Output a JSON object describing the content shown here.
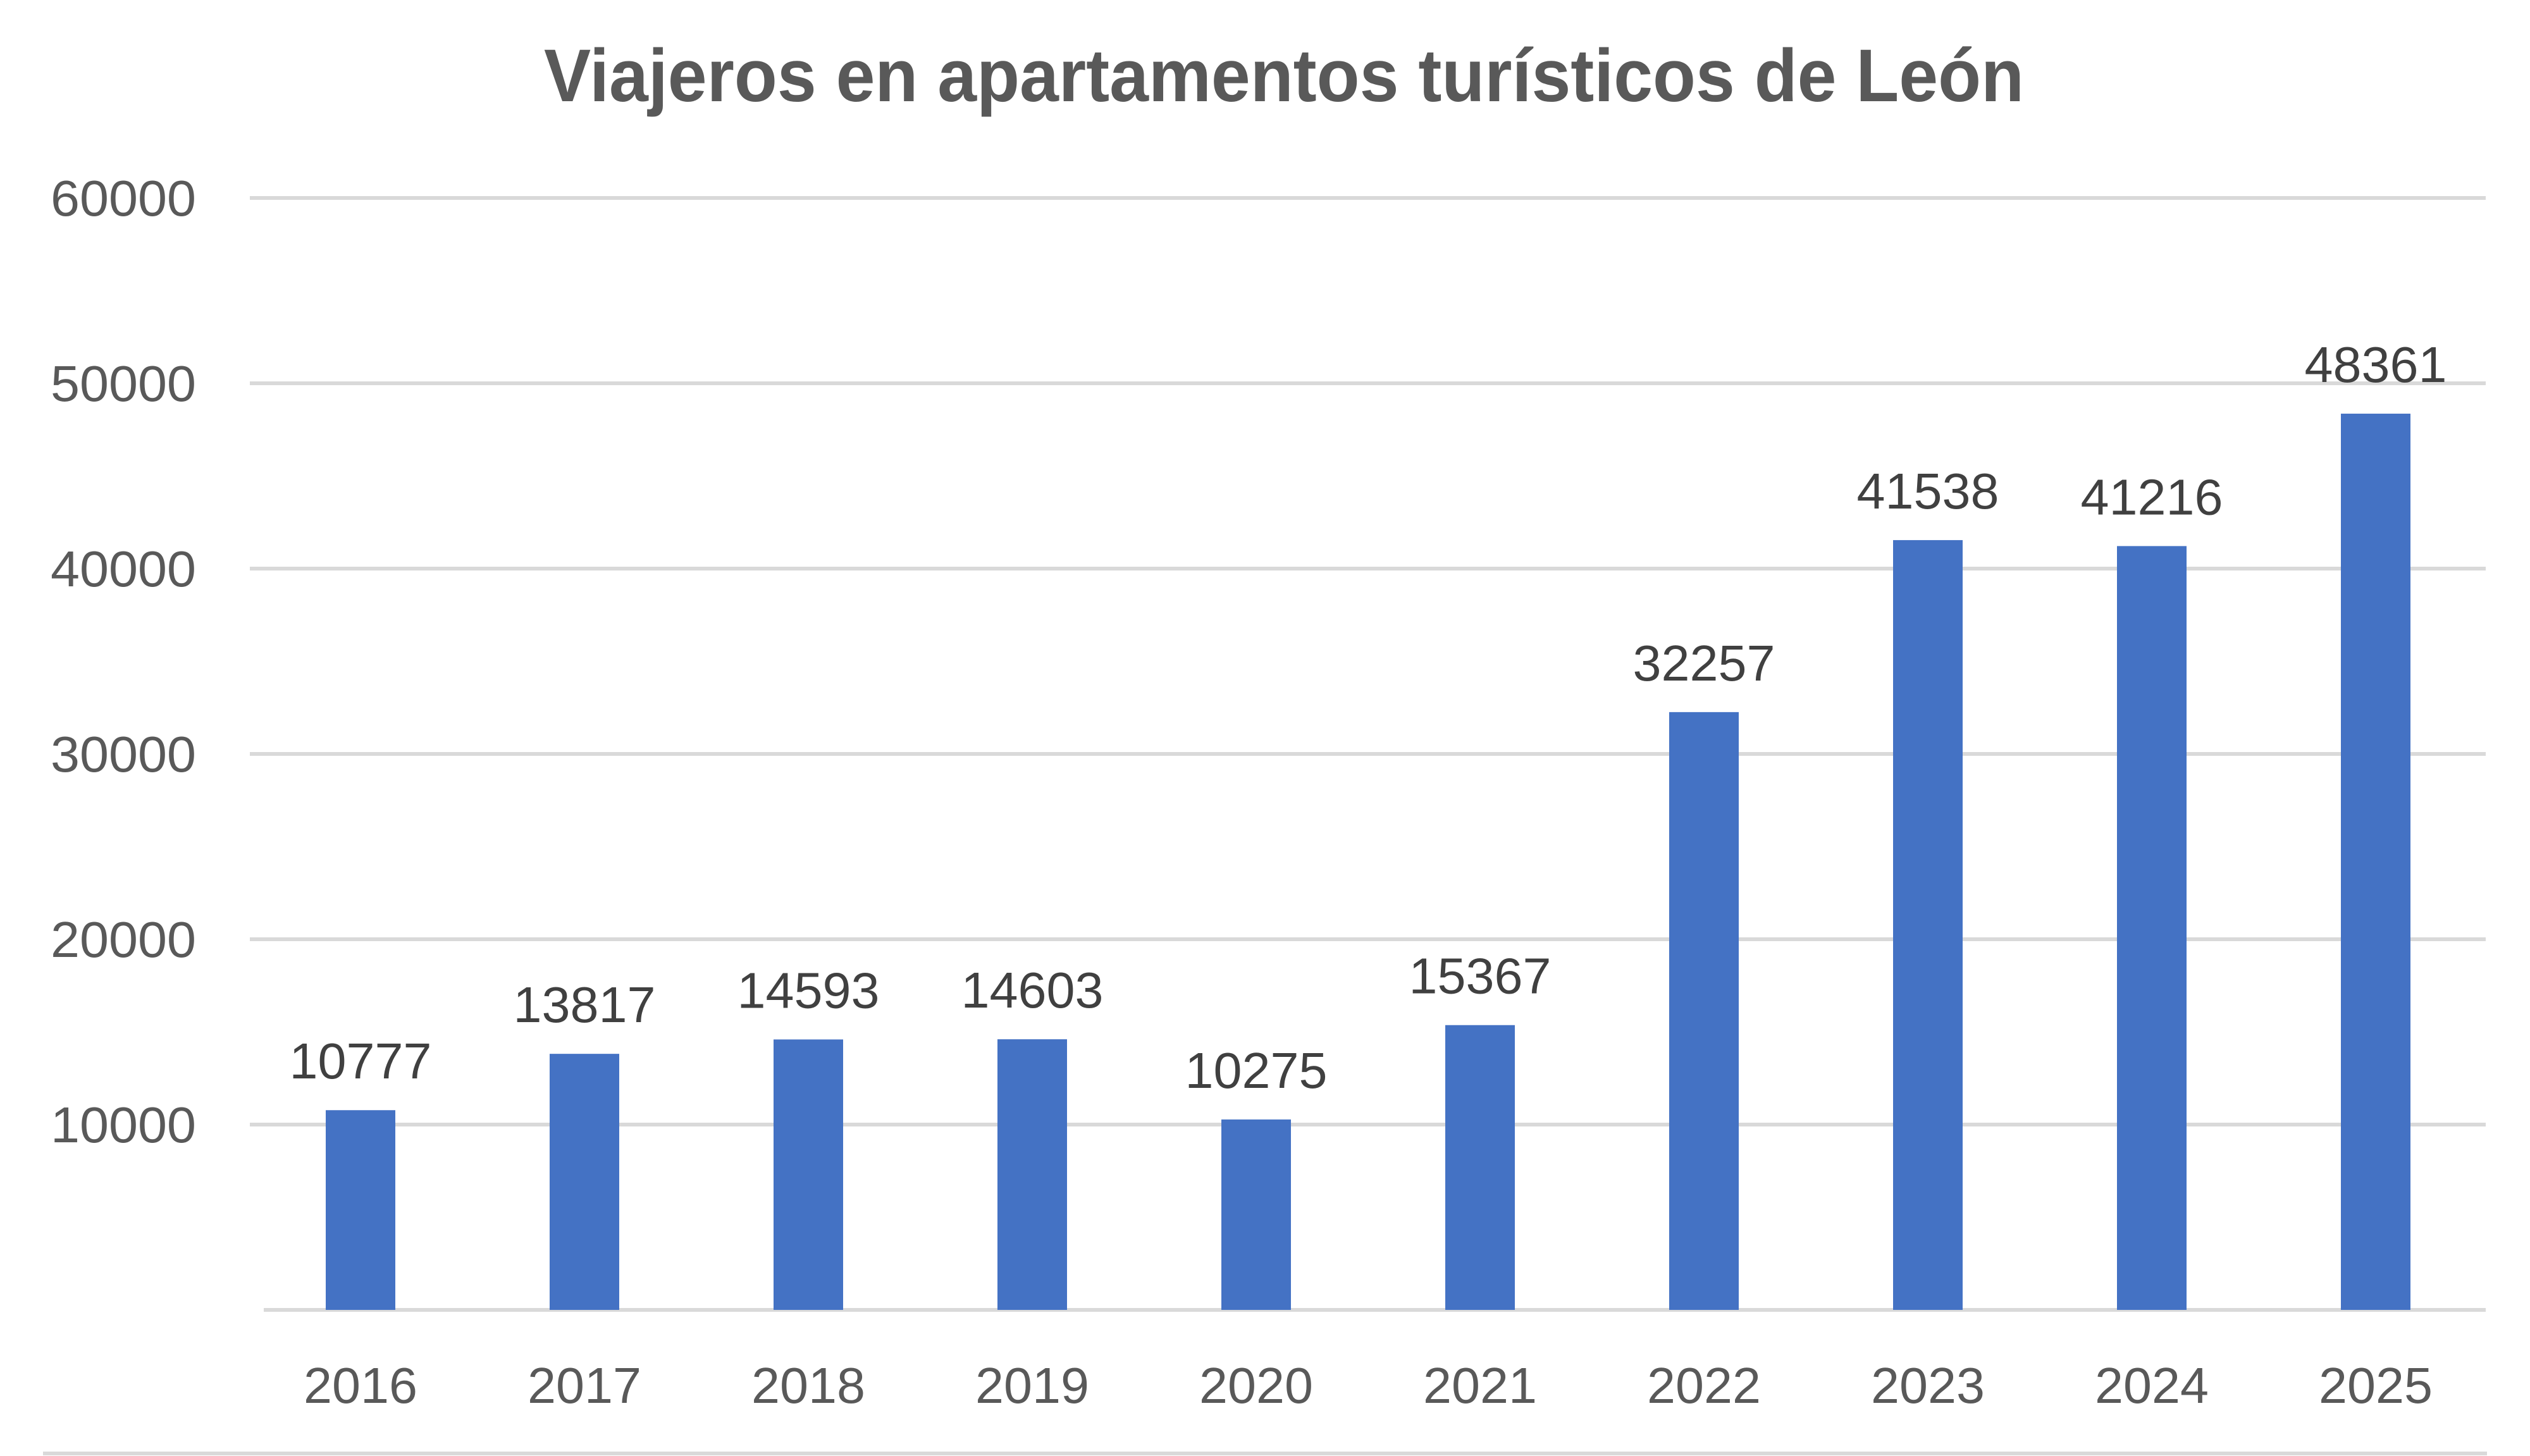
{
  "chart_data": {
    "type": "bar",
    "title": "Viajeros en apartamentos turísticos de León",
    "xlabel": "",
    "ylabel": "",
    "categories": [
      "2016",
      "2017",
      "2018",
      "2019",
      "2020",
      "2021",
      "2022",
      "2023",
      "2024",
      "2025"
    ],
    "values": [
      10777,
      13817,
      14593,
      14603,
      10275,
      15367,
      32257,
      41538,
      41216,
      48361
    ],
    "ylim": [
      0,
      60000
    ],
    "yticks": [
      "10000",
      "20000",
      "30000",
      "40000",
      "50000",
      "60000"
    ],
    "grid": true,
    "legend": "none",
    "colors": {
      "bar": "#4472C4",
      "grid": "#D9D9D9",
      "text": "#595959",
      "label": "#404040"
    }
  }
}
